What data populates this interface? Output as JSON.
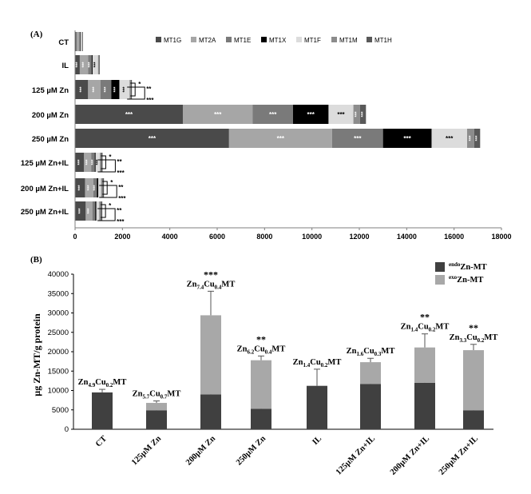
{
  "chart_data": [
    {
      "type": "bar",
      "orientation": "horizontal",
      "stacked": true,
      "panel_label": "(A)",
      "categories": [
        "CT",
        "IL",
        "125 µM Zn",
        "200 µM Zn",
        "250 µM Zn",
        "125 µM Zn+IL",
        "200 µM Zn+IL",
        "250 µM Zn+IL"
      ],
      "series": [
        {
          "name": "MT1G",
          "color": "#4a4a4a",
          "values": [
            60,
            200,
            550,
            4550,
            6500,
            380,
            420,
            450
          ]
        },
        {
          "name": "MT2A",
          "color": "#a6a6a6",
          "values": [
            120,
            350,
            520,
            2950,
            4350,
            300,
            350,
            280
          ]
        },
        {
          "name": "MT1E",
          "color": "#7a7a7a",
          "values": [
            40,
            150,
            460,
            1700,
            2150,
            150,
            150,
            120
          ]
        },
        {
          "name": "MT1X",
          "color": "#000000",
          "values": [
            20,
            40,
            340,
            1500,
            2050,
            40,
            60,
            50
          ]
        },
        {
          "name": "MT1F",
          "color": "#dcdcdc",
          "values": [
            50,
            230,
            430,
            1050,
            1500,
            180,
            120,
            120
          ]
        },
        {
          "name": "MT1M",
          "color": "#8c8c8c",
          "values": [
            25,
            30,
            60,
            280,
            300,
            50,
            60,
            70
          ]
        },
        {
          "name": "MT1H",
          "color": "#595959",
          "values": [
            20,
            40,
            40,
            250,
            250,
            60,
            60,
            60
          ]
        }
      ],
      "significance_text": "***",
      "side_marks": [
        "*",
        "**",
        "***"
      ],
      "xlim": [
        0,
        18000
      ],
      "xticks": [
        0,
        2000,
        4000,
        6000,
        8000,
        10000,
        12000,
        14000,
        16000,
        18000
      ],
      "tick_labels": [
        "0",
        "2000",
        "4000",
        "6000",
        "8000",
        "10000",
        "12000",
        "14000",
        "16000",
        "18000"
      ],
      "legend_position": "top"
    },
    {
      "type": "bar",
      "orientation": "vertical",
      "stacked": true,
      "panel_label": "(B)",
      "ylabel": "µg Zn-MT/g protein",
      "categories": [
        "CT",
        "125µM Zn",
        "200µM Zn",
        "250µM Zn",
        "IL",
        "125µM Zn+IL",
        "200µM Zn+IL",
        "250µM Zn+IL"
      ],
      "series": [
        {
          "name_super": "endo",
          "name_main": "Zn-MT",
          "color": "#404040",
          "values": [
            9500,
            4900,
            9000,
            5300,
            11200,
            11700,
            12000,
            4900
          ],
          "errors": [
            800,
            500,
            3800,
            1200,
            4300,
            3600,
            600,
            500
          ]
        },
        {
          "name_super": "exo",
          "name_main": "Zn-MT",
          "color": "#a8a8a8",
          "values": [
            0,
            1900,
            20400,
            12500,
            0,
            5600,
            9100,
            15500
          ],
          "errors": [
            0,
            500,
            6200,
            1100,
            0,
            1000,
            3500,
            1500
          ]
        }
      ],
      "stoichiometry": [
        {
          "pre": "Zn",
          "zn": "4.9",
          "mid": "Cu",
          "cu": "0.2",
          "post": "MT"
        },
        {
          "pre": "Zn",
          "zn": "5.7",
          "mid": "Cu",
          "cu": "0.7",
          "post": "MT"
        },
        {
          "pre": "Zn",
          "zn": "7.4",
          "mid": "Cu",
          "cu": "0.4",
          "post": "MT"
        },
        {
          "pre": "Zn",
          "zn": "6.2",
          "mid": "Cu",
          "cu": "0.4",
          "post": "MT"
        },
        {
          "pre": "Zn",
          "zn": "1.4",
          "mid": "Cu",
          "cu": "0.2",
          "post": "MT"
        },
        {
          "pre": "Zn",
          "zn": "1.6",
          "mid": "Cu",
          "cu": "0.3",
          "post": "MT"
        },
        {
          "pre": "Zn",
          "zn": "1.4",
          "mid": "Cu",
          "cu": "0.2",
          "post": "MT"
        },
        {
          "pre": "Zn",
          "zn": "3.3",
          "mid": "Cu",
          "cu": "0.2",
          "post": "MT"
        }
      ],
      "significance": [
        "",
        "",
        "***",
        "**",
        "",
        "",
        "**",
        "**"
      ],
      "ylim": [
        0,
        40000
      ],
      "yticks": [
        0,
        5000,
        10000,
        15000,
        20000,
        25000,
        30000,
        35000,
        40000
      ],
      "tick_labels": [
        "0",
        "5000",
        "10000",
        "15000",
        "20000",
        "25000",
        "30000",
        "35000",
        "40000"
      ],
      "legend_position": "top-right"
    }
  ]
}
